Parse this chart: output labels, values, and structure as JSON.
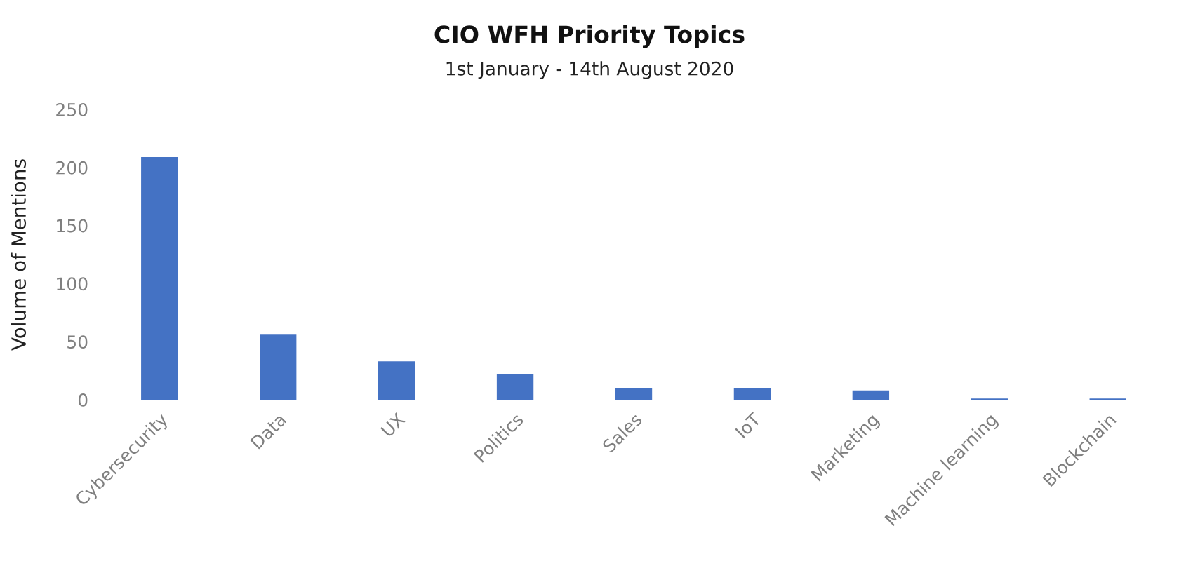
{
  "chart_data": {
    "type": "bar",
    "title": "CIO WFH Priority Topics",
    "subtitle": "1st January - 14th August 2020",
    "ylabel": "Volume of Mentions",
    "categories": [
      "Cybersecurity",
      "Data",
      "UX",
      "Politics",
      "Sales",
      "IoT",
      "Marketing",
      "Machine learning",
      "Blockchain"
    ],
    "values": [
      209,
      56,
      33,
      22,
      10,
      10,
      8,
      1,
      1
    ],
    "color": "#4472c4",
    "ylim": [
      0,
      250
    ],
    "yticks": [
      0,
      50,
      100,
      150,
      200,
      250
    ]
  }
}
